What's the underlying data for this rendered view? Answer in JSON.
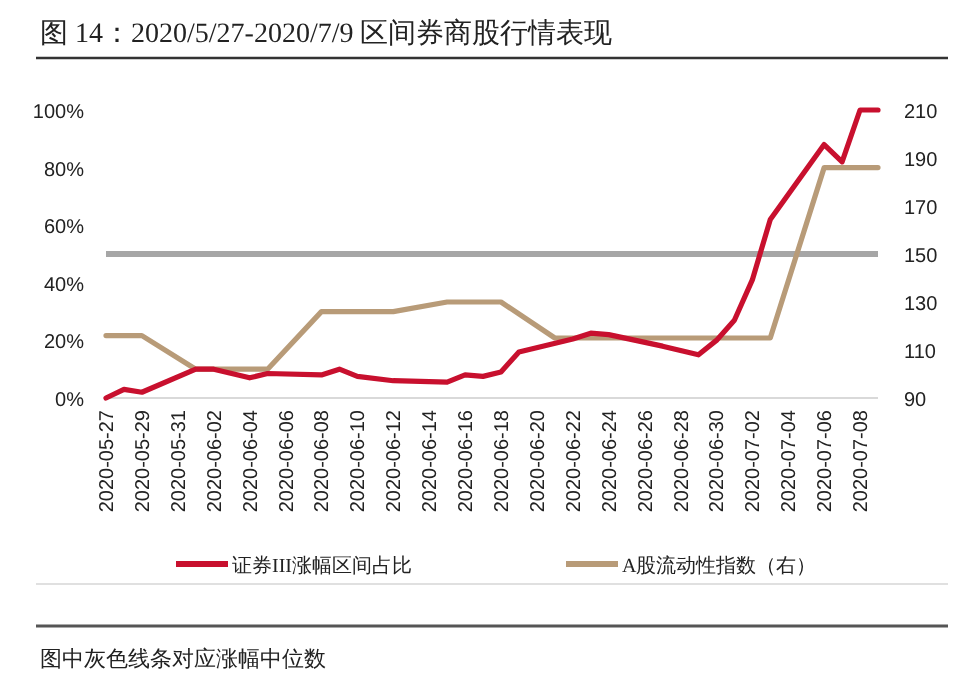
{
  "chart_data": {
    "type": "line",
    "title": "图 14：2020/5/27-2020/7/9 区间券商股行情表现",
    "series": [
      {
        "name": "证券III涨幅区间占比",
        "color": "#c8102e",
        "x": [
          "2020-05-27",
          "2020-05-28",
          "2020-05-29",
          "2020-06-01",
          "2020-06-02",
          "2020-06-04",
          "2020-06-05",
          "2020-06-08",
          "2020-06-09",
          "2020-06-10",
          "2020-06-12",
          "2020-06-15",
          "2020-06-16",
          "2020-06-17",
          "2020-06-18",
          "2020-06-19",
          "2020-06-22",
          "2020-06-23",
          "2020-06-24",
          "2020-06-27",
          "2020-06-29",
          "2020-06-30",
          "2020-07-01",
          "2020-07-02",
          "2020-07-03",
          "2020-07-06",
          "2020-07-07",
          "2020-07-08",
          "2020-07-09"
        ],
        "values": [
          0,
          3,
          2,
          10,
          10,
          7,
          8.5,
          8,
          10,
          7.5,
          6,
          5.5,
          8,
          7.5,
          9,
          16,
          20.5,
          22.5,
          22,
          18,
          15,
          20,
          27,
          41,
          62,
          88,
          82,
          100,
          100
        ]
      },
      {
        "name": "A股流动性指数（右）",
        "color": "#b89b78",
        "axis": "y2",
        "x": [
          "2020-05-27",
          "2020-05-29",
          "2020-06-01",
          "2020-06-05",
          "2020-06-08",
          "2020-06-12",
          "2020-06-15",
          "2020-06-18",
          "2020-06-21",
          "2020-07-03",
          "2020-07-06",
          "2020-07-09"
        ],
        "values": [
          116,
          116,
          102,
          102,
          126,
          126,
          130,
          130,
          115,
          115,
          186,
          186
        ]
      }
    ],
    "xlim": [
      "2020-05-27",
      "2020-07-09"
    ],
    "xticks": [
      "2020-05-27",
      "2020-05-29",
      "2020-05-31",
      "2020-06-02",
      "2020-06-04",
      "2020-06-06",
      "2020-06-08",
      "2020-06-10",
      "2020-06-12",
      "2020-06-14",
      "2020-06-16",
      "2020-06-18",
      "2020-06-20",
      "2020-06-22",
      "2020-06-24",
      "2020-06-26",
      "2020-06-28",
      "2020-06-30",
      "2020-07-02",
      "2020-07-04",
      "2020-07-06",
      "2020-07-08"
    ],
    "ylim": [
      0,
      100
    ],
    "yticks": [
      {
        "value": 0,
        "label": "0%"
      },
      {
        "value": 20,
        "label": "20%"
      },
      {
        "value": 40,
        "label": "40%"
      },
      {
        "value": 60,
        "label": "60%"
      },
      {
        "value": 80,
        "label": "80%"
      },
      {
        "value": 100,
        "label": "100%"
      }
    ],
    "y2lim": [
      90,
      210
    ],
    "y2ticks": [
      90,
      110,
      130,
      150,
      170,
      190,
      210
    ],
    "ref_lines": [
      {
        "axis": "y",
        "value": 50,
        "color": "#a6a6a6"
      }
    ],
    "legend": "bottom",
    "annotations": [
      "图中灰色线条对应涨幅中位数"
    ]
  }
}
